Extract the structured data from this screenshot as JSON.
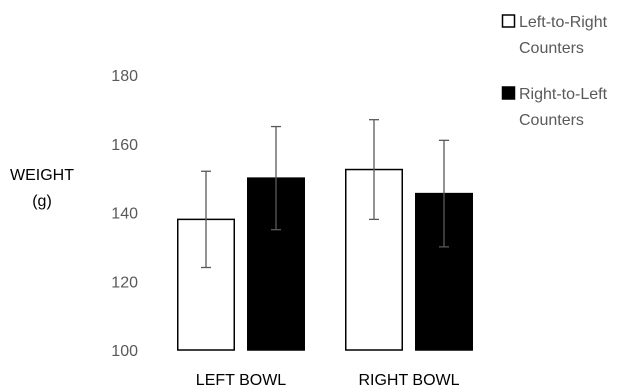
{
  "chart_data": {
    "type": "bar",
    "categories": [
      "LEFT BOWL",
      "RIGHT BOWL"
    ],
    "series": [
      {
        "name": "Left-to-Right Counters",
        "name_lines": [
          "Left-to-Right",
          "Counters"
        ],
        "values": [
          138,
          152.5
        ],
        "error": [
          14,
          14.5
        ],
        "fill": "#ffffff",
        "stroke": "#000000"
      },
      {
        "name": "Right-to-Left Counters",
        "name_lines": [
          "Right-to-Left",
          "Counters"
        ],
        "values": [
          150,
          145.5
        ],
        "error": [
          15,
          15.5
        ],
        "fill": "#000000",
        "stroke": "#000000"
      }
    ],
    "ylabel_lines": [
      "WEIGHT",
      "(g)"
    ],
    "ylim": [
      100,
      180
    ],
    "yticks": [
      100,
      120,
      140,
      160,
      180
    ],
    "grid": false,
    "legend": "top-right",
    "error_bar_color": "#595959"
  }
}
